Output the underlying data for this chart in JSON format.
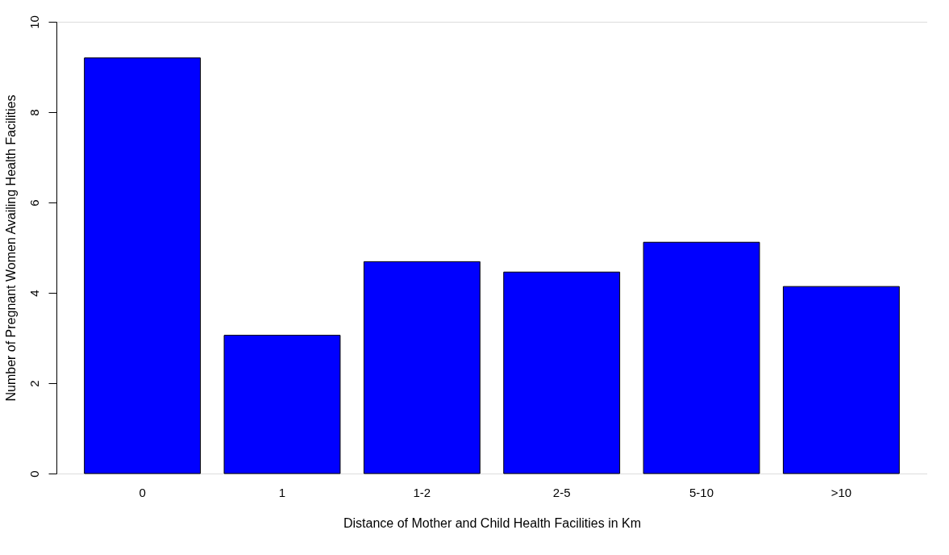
{
  "chart_data": {
    "type": "bar",
    "xlabel": "Distance of Mother and Child Health Facilities in Km",
    "ylabel": "Number of Pregnant Women Availing Health Facilities",
    "categories": [
      "0",
      "1",
      "1-2",
      "2-5",
      "5-10",
      ">10"
    ],
    "values": [
      9.2,
      3.06,
      4.69,
      4.46,
      5.12,
      4.14
    ],
    "color": "#0000ff",
    "ylim": [
      0,
      10
    ],
    "yticks": [
      0,
      2,
      4,
      6,
      8,
      10
    ],
    "grid": false
  }
}
